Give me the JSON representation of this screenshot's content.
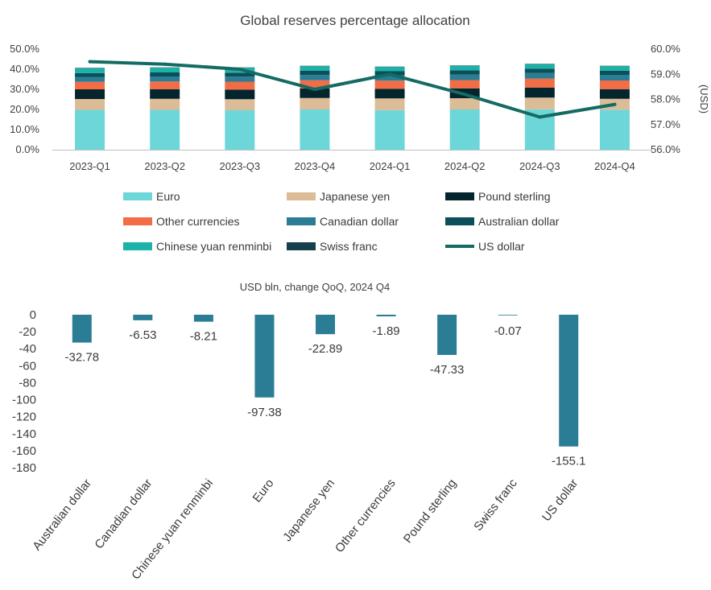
{
  "chart_data": [
    {
      "type": "bar",
      "stacked": true,
      "title": "Global reserves percentage allocation",
      "categories": [
        "2023-Q1",
        "2023-Q2",
        "2023-Q3",
        "2023-Q4",
        "2024-Q1",
        "2024-Q2",
        "2024-Q3",
        "2024-Q4"
      ],
      "ylim": [
        0,
        50
      ],
      "yticks": [
        "0.0%",
        "10.0%",
        "20.0%",
        "30.0%",
        "40.0%",
        "50.0%"
      ],
      "y2label": "(USD)",
      "y2lim": [
        56,
        60
      ],
      "y2ticks": [
        "56.0%",
        "57.0%",
        "58.0%",
        "59.0%",
        "60.0%"
      ],
      "series": [
        {
          "name": "Euro",
          "color": "#6dd6d8",
          "values": [
            19.8,
            19.8,
            19.6,
            20.0,
            19.7,
            20.0,
            20.1,
            19.9
          ]
        },
        {
          "name": "Japanese yen",
          "color": "#dcbb97",
          "values": [
            5.4,
            5.5,
            5.5,
            5.7,
            5.8,
            5.6,
            5.8,
            5.4
          ]
        },
        {
          "name": "Pound sterling",
          "color": "#04252d",
          "values": [
            4.8,
            4.8,
            4.8,
            4.8,
            4.8,
            4.9,
            5.0,
            4.8
          ]
        },
        {
          "name": "Other currencies",
          "color": "#f26d45",
          "values": [
            3.7,
            3.8,
            3.9,
            4.0,
            4.0,
            4.1,
            4.4,
            4.3
          ]
        },
        {
          "name": "Canadian dollar",
          "color": "#2b7d95",
          "values": [
            2.5,
            2.5,
            2.5,
            2.6,
            2.6,
            2.7,
            2.8,
            2.8
          ]
        },
        {
          "name": "Australian dollar",
          "color": "#0a4f59",
          "values": [
            1.9,
            2.0,
            2.0,
            2.1,
            2.1,
            2.2,
            2.2,
            2.1
          ]
        },
        {
          "name": "Chinese yuan renminbi",
          "color": "#1bb3a8",
          "values": [
            2.4,
            2.3,
            2.4,
            2.3,
            2.1,
            2.2,
            2.2,
            2.2
          ]
        },
        {
          "name": "Swiss franc",
          "color": "#17404d",
          "values": [
            0.2,
            0.2,
            0.2,
            0.2,
            0.2,
            0.2,
            0.2,
            0.2
          ]
        }
      ],
      "line_series": {
        "name": "US dollar",
        "color": "#146b63",
        "axis": "right",
        "values": [
          59.5,
          59.4,
          59.2,
          58.4,
          59.0,
          58.2,
          57.3,
          57.8
        ]
      }
    },
    {
      "type": "bar",
      "title": "USD bln, change QoQ, 2024 Q4",
      "categories": [
        "Australian dollar",
        "Canadian dollar",
        "Chinese yuan renminbi",
        "Euro",
        "Japanese yen",
        "Other currencies",
        "Pound sterling",
        "Swiss franc",
        "US dollar"
      ],
      "values": [
        -32.78,
        -6.53,
        -8.21,
        -97.38,
        -22.89,
        -1.89,
        -47.33,
        -0.07,
        -155.1
      ],
      "data_labels": [
        "-32.78",
        "-6.53",
        "-8.21",
        "-97.38",
        "-22.89",
        "-1.89",
        "-47.33",
        "-0.07",
        "-155.1"
      ],
      "color": "#2b7d95",
      "ylim": [
        -180,
        0
      ],
      "yticks": [
        "0",
        "-20",
        "-40",
        "-60",
        "-80",
        "-100",
        "-120",
        "-140",
        "-160",
        "-180"
      ]
    }
  ]
}
